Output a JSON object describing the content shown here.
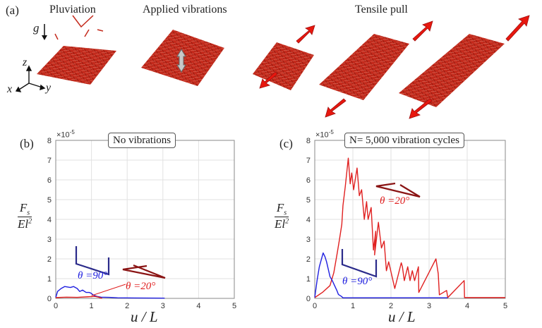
{
  "panel_a": {
    "label": "(a)",
    "titles": [
      "Pluviation",
      "Applied vibrations",
      "Tensile pull"
    ],
    "gravity": "g",
    "axes": {
      "x": "x",
      "y": "y",
      "z": "z"
    },
    "colors": {
      "fibers": "#c42a1c",
      "pull_arrow": "#e8170e",
      "vibration_arrow": "#c8c8c8"
    }
  },
  "chart_data": [
    {
      "type": "line",
      "panel_label": "(b)",
      "title": "No vibrations",
      "xlabel": "u / L",
      "ylabel_num": "F",
      "ylabel_num_sub": "s",
      "ylabel_den": "El",
      "ylabel_den_sup": "2",
      "y_multiplier": "×10",
      "y_multiplier_exp": "-5",
      "xlim": [
        0,
        5
      ],
      "ylim": [
        0,
        8
      ],
      "xticks": [
        "0",
        "1",
        "2",
        "3",
        "4",
        "5"
      ],
      "yticks": [
        "0",
        "1",
        "2",
        "3",
        "4",
        "5",
        "6",
        "7",
        "8"
      ],
      "grid": true,
      "annotations": [
        "θ =90°",
        "θ =20°"
      ],
      "series": [
        {
          "name": "θ=90°",
          "color": "#1f1fe0",
          "x": [
            0,
            0.05,
            0.15,
            0.25,
            0.41,
            0.5,
            0.6,
            0.67,
            0.75,
            0.85,
            0.94,
            1.0,
            1.04,
            1.15,
            1.27,
            1.5,
            1.73,
            2.2,
            3.05
          ],
          "y": [
            0.04,
            0.35,
            0.5,
            0.6,
            0.55,
            0.6,
            0.5,
            0.35,
            0.42,
            0.3,
            0.3,
            0.25,
            0.18,
            0.1,
            0.06,
            0.05,
            0.03,
            0.02,
            0.01
          ]
        },
        {
          "name": "θ=20°",
          "color": "#e02020",
          "x": [
            0,
            0.3,
            0.6,
            0.9,
            1.1,
            1.2,
            1.3
          ],
          "y": [
            0.04,
            0.06,
            0.05,
            0.08,
            0.1,
            0.06,
            0.0
          ]
        }
      ]
    },
    {
      "type": "line",
      "panel_label": "(c)",
      "title": "N= 5,000 vibration cycles",
      "xlabel": "u / L",
      "ylabel_num": "F",
      "ylabel_num_sub": "s",
      "ylabel_den": "El",
      "ylabel_den_sup": "2",
      "y_multiplier": "×10",
      "y_multiplier_exp": "-5",
      "xlim": [
        0,
        5
      ],
      "ylim": [
        0,
        8
      ],
      "xticks": [
        "0",
        "1",
        "2",
        "3",
        "4",
        "5"
      ],
      "yticks": [
        "0",
        "1",
        "2",
        "3",
        "4",
        "5",
        "6",
        "7",
        "8"
      ],
      "grid": true,
      "annotations": [
        "θ =20°",
        "θ =90°"
      ],
      "series": [
        {
          "name": "θ=20°",
          "color": "#e02020",
          "x": [
            0,
            0.2,
            0.4,
            0.5,
            0.59,
            0.65,
            0.71,
            0.74,
            0.8,
            0.88,
            0.93,
            0.97,
            1.02,
            1.11,
            1.17,
            1.23,
            1.3,
            1.36,
            1.4,
            1.48,
            1.54,
            1.6,
            1.57,
            1.67,
            1.75,
            1.82,
            1.88,
            1.94,
            2.1,
            2.27,
            2.3,
            2.35,
            2.44,
            2.5,
            2.56,
            2.62,
            2.72,
            2.73,
            3.18,
            3.24,
            3.27,
            3.46,
            3.49,
            3.92,
            3.93,
            5.0
          ],
          "y": [
            0.04,
            0.3,
            0.65,
            1.3,
            2.3,
            3.0,
            3.75,
            4.7,
            5.65,
            7.1,
            5.8,
            6.35,
            5.5,
            6.6,
            5.2,
            5.5,
            4.0,
            4.9,
            4.0,
            4.6,
            2.45,
            3.4,
            2.2,
            3.85,
            2.55,
            2.9,
            1.4,
            1.85,
            0.5,
            1.8,
            1.6,
            0.9,
            1.6,
            0.9,
            1.4,
            0.9,
            1.6,
            0.3,
            2.0,
            1.25,
            0.18,
            0.4,
            0.04,
            0.9,
            0.04,
            0.04
          ]
        },
        {
          "name": "θ=90°",
          "color": "#1f1fe0",
          "x": [
            0,
            0.06,
            0.12,
            0.22,
            0.27,
            0.31,
            0.4,
            0.46,
            0.52,
            0.58,
            0.62,
            0.7,
            0.74,
            1.5,
            3.49
          ],
          "y": [
            0.05,
            0.9,
            1.6,
            2.3,
            2.1,
            1.85,
            1.1,
            0.9,
            0.65,
            0.4,
            0.2,
            0.1,
            0.03,
            0.03,
            0.03
          ]
        }
      ]
    }
  ]
}
